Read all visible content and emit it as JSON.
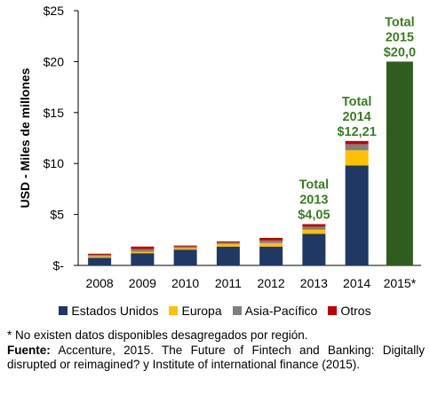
{
  "chart_data": {
    "type": "bar",
    "stacked": true,
    "categories": [
      "2008",
      "2009",
      "2010",
      "2011",
      "2012",
      "2013",
      "2014",
      "2015*"
    ],
    "ylabel": "USD - Miles de millones",
    "ylim": [
      0,
      25
    ],
    "yticks": [
      {
        "value": 0,
        "label": "$-"
      },
      {
        "value": 5,
        "label": "$5"
      },
      {
        "value": 10,
        "label": "$10"
      },
      {
        "value": 15,
        "label": "$15"
      },
      {
        "value": 20,
        "label": "$20"
      },
      {
        "value": 25,
        "label": "$25"
      }
    ],
    "grid": false,
    "legend_position": "bottom",
    "series": [
      {
        "name": "Estados Unidos",
        "color": "#1f3864",
        "values": [
          0.75,
          1.2,
          1.55,
          1.85,
          1.85,
          3.1,
          9.8,
          null
        ]
      },
      {
        "name": "Europa",
        "color": "#ffc000",
        "values": [
          0.15,
          0.15,
          0.15,
          0.25,
          0.35,
          0.4,
          1.5,
          null
        ]
      },
      {
        "name": "Asia-Pacífico",
        "color": "#7f7f7f",
        "values": [
          0.15,
          0.25,
          0.15,
          0.15,
          0.25,
          0.3,
          0.6,
          null
        ]
      },
      {
        "name": "Otros",
        "color": "#c00000",
        "values": [
          0.1,
          0.25,
          0.1,
          0.1,
          0.25,
          0.25,
          0.31,
          null
        ]
      }
    ],
    "totals_series": {
      "color": "#2f5d1f",
      "values": [
        null,
        null,
        null,
        null,
        null,
        null,
        null,
        20.0
      ]
    },
    "annotations": [
      {
        "category": "2013",
        "lines": [
          "Total",
          "2013",
          "$4,05"
        ],
        "value": 4.05
      },
      {
        "category": "2014",
        "lines": [
          "Total",
          "2014",
          "$12,21"
        ],
        "value": 12.21
      },
      {
        "category": "2015*",
        "lines": [
          "Total",
          "2015",
          "$20,0"
        ],
        "value": 20.0
      }
    ],
    "annotation_color": "#3b7d23"
  },
  "notes": {
    "footnote": "* No existen datos disponibles desagregados por región.",
    "source_label": "Fuente:",
    "source_text": " Accenture, 2015. The Future of Fintech and Banking: Digitally disrupted or reimagined? y Institute of international finance (2015)."
  }
}
